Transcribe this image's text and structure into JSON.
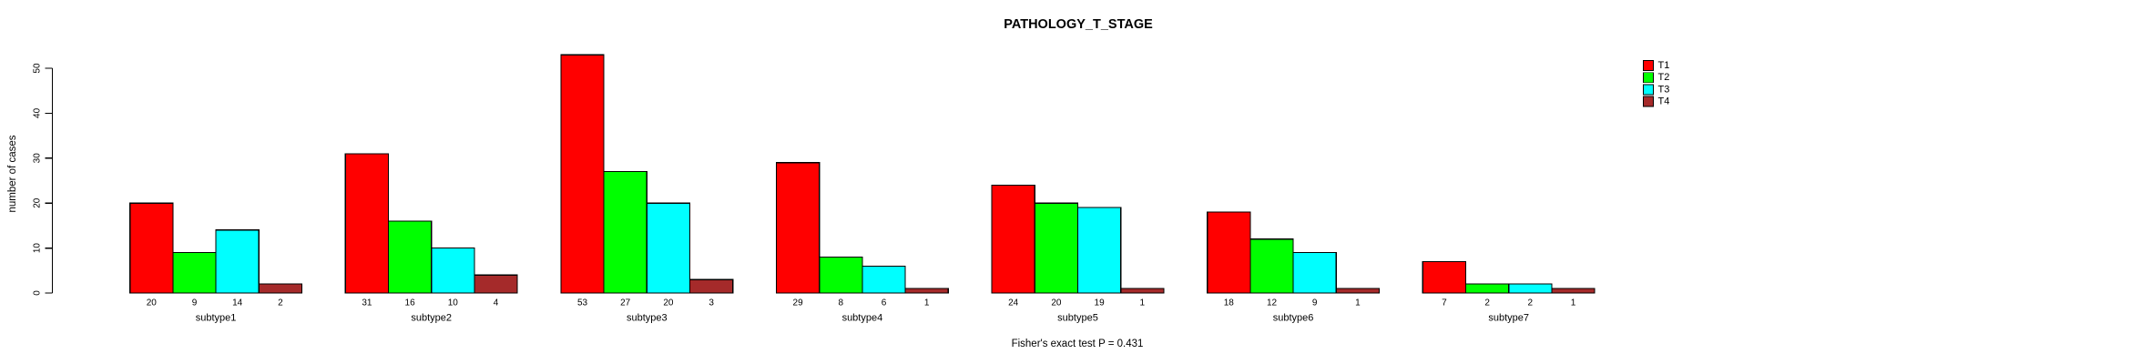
{
  "chart_data": {
    "type": "bar",
    "title": "PATHOLOGY_T_STAGE",
    "ylabel": "number of cases",
    "xlabel": "",
    "categories": [
      "subtype1",
      "subtype2",
      "subtype3",
      "subtype4",
      "subtype5",
      "subtype6",
      "subtype7"
    ],
    "series": [
      {
        "name": "T1",
        "color": "#ff0000",
        "values": [
          20,
          31,
          53,
          29,
          24,
          18,
          7
        ]
      },
      {
        "name": "T2",
        "color": "#00ff00",
        "values": [
          9,
          16,
          27,
          8,
          20,
          12,
          2
        ]
      },
      {
        "name": "T3",
        "color": "#00ffff",
        "values": [
          14,
          10,
          20,
          6,
          19,
          9,
          2
        ]
      },
      {
        "name": "T4",
        "color": "#a52a2a",
        "values": [
          2,
          4,
          3,
          1,
          1,
          1,
          1
        ]
      }
    ],
    "yticks": [
      0,
      10,
      20,
      30,
      40,
      50
    ],
    "ylim": [
      0,
      50
    ],
    "grid": false,
    "bar_outline_color": "#000000",
    "bar_value_labels_shown": true,
    "legend_position": "right-top",
    "legend_labels": [
      "T1",
      "T2",
      "T3",
      "T4"
    ],
    "annotation": "Fisher's exact test P = 0.431"
  }
}
